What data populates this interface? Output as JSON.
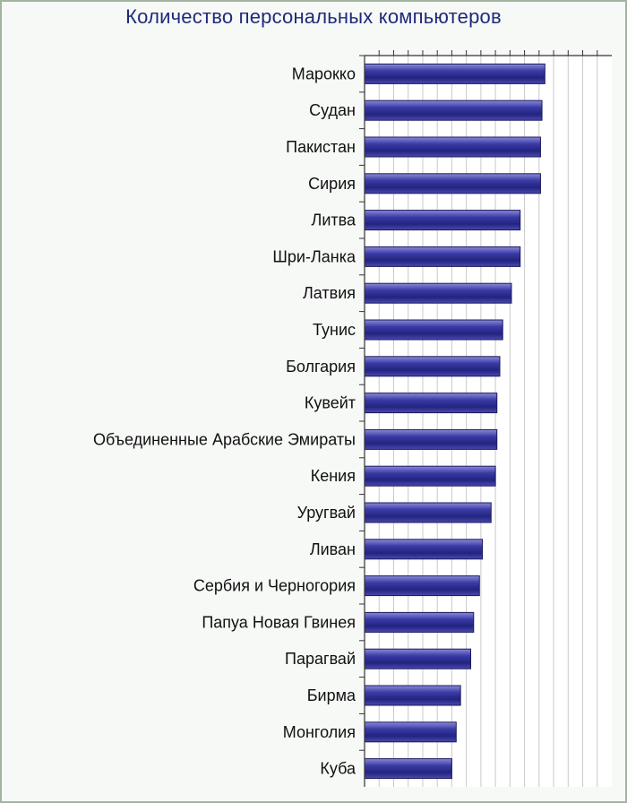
{
  "chart_data": {
    "type": "bar",
    "orientation": "horizontal",
    "title": "Количество персональных компьютеров",
    "xlabel": "",
    "ylabel": "",
    "categories": [
      "Марокко",
      "Судан",
      "Пакистан",
      "Сирия",
      "Литва",
      "Шри-Ланка",
      "Латвия",
      "Тунис",
      "Болгария",
      "Кувейт",
      "Объединенные Арабские Эмираты",
      "Кения",
      "Уругвай",
      "Ливан",
      "Сербия и Черногория",
      "Папуа Новая Гвинея",
      "Парагвай",
      "Бирма",
      "Монголия",
      "Куба"
    ],
    "values": [
      62,
      61,
      60.5,
      60.5,
      53.5,
      53.5,
      50.5,
      47.5,
      46.5,
      45.5,
      45.5,
      45,
      43.5,
      40.5,
      39.5,
      37.5,
      36.5,
      33,
      31.5,
      30
    ],
    "xlim": [
      0,
      85
    ],
    "grid": true,
    "legend": "none",
    "bar_color": "#2e2e8f"
  }
}
